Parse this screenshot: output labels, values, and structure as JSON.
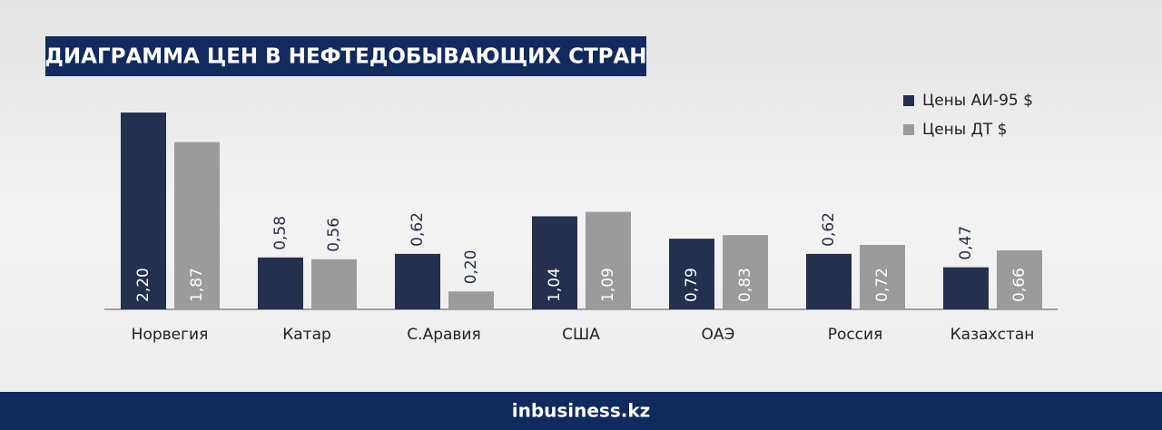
{
  "chart_data": {
    "type": "bar",
    "title": "ДИАГРАММА ЦЕН В НЕФТЕДОБЫВАЮЩИХ СТРАН",
    "categories": [
      "Норвегия",
      "Катар",
      "С.Аравия",
      "США",
      "ОАЭ",
      "Россия",
      "Казахстан"
    ],
    "series": [
      {
        "name": "Цены АИ-95 $",
        "color": "#252f4e",
        "values": [
          2.2,
          0.58,
          0.62,
          1.04,
          0.79,
          0.62,
          0.47
        ],
        "value_labels": [
          "2,20",
          "0,58",
          "0,62",
          "1,04",
          "0,79",
          "0,62",
          "0,47"
        ]
      },
      {
        "name": "Цены ДТ $",
        "color": "#9b9b9b",
        "values": [
          1.87,
          0.56,
          0.2,
          1.09,
          0.83,
          0.72,
          0.66
        ],
        "value_labels": [
          "1,87",
          "0,56",
          "0,20",
          "1,09",
          "0,83",
          "0,72",
          "0,66"
        ]
      }
    ],
    "legend": "top-right"
  },
  "footer": "inbusiness.kz"
}
